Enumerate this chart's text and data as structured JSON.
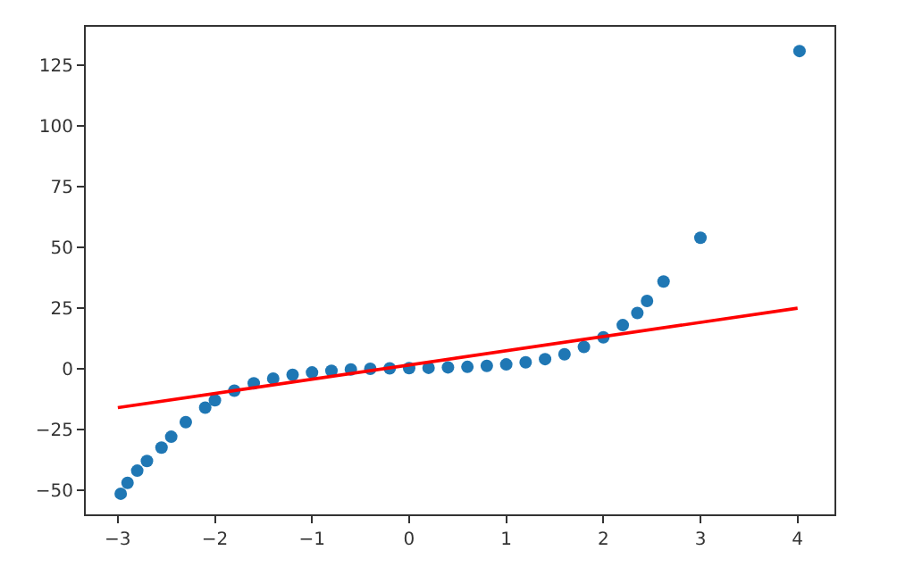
{
  "chart_data": {
    "type": "scatter",
    "xlim": [
      -3.33,
      4.38
    ],
    "ylim": [
      -60,
      141
    ],
    "xticks": [
      -3,
      -2,
      -1,
      0,
      1,
      2,
      3,
      4
    ],
    "yticks": [
      -50,
      -25,
      0,
      25,
      50,
      75,
      100,
      125
    ],
    "grid": false,
    "legend": false,
    "series": [
      {
        "marker": "circle",
        "color": "#1f77b4",
        "x": [
          -2.97,
          -2.9,
          -2.8,
          -2.7,
          -2.55,
          -2.45,
          -2.3,
          -2.1,
          -2.0,
          -1.8,
          -1.6,
          -1.4,
          -1.2,
          -1.0,
          -0.8,
          -0.6,
          -0.4,
          -0.2,
          0,
          0.2,
          0.4,
          0.6,
          0.8,
          1.0,
          1.2,
          1.4,
          1.6,
          1.8,
          2.0,
          2.2,
          2.35,
          2.45,
          2.62,
          3.0,
          4.02
        ],
        "values": [
          -51.5,
          -47,
          -42,
          -38,
          -32.5,
          -28,
          -22,
          -16,
          -13,
          -9,
          -6,
          -4,
          -2.5,
          -1.5,
          -0.8,
          -0.3,
          0,
          0.2,
          0.3,
          0.4,
          0.6,
          0.8,
          1.2,
          1.8,
          2.7,
          4,
          6,
          9,
          13,
          18,
          23,
          28,
          36,
          54,
          131
        ]
      },
      {
        "type": "line",
        "marker": "none",
        "color": "#ff0000",
        "x": [
          -3,
          4
        ],
        "values": [
          -16,
          25
        ]
      }
    ]
  }
}
